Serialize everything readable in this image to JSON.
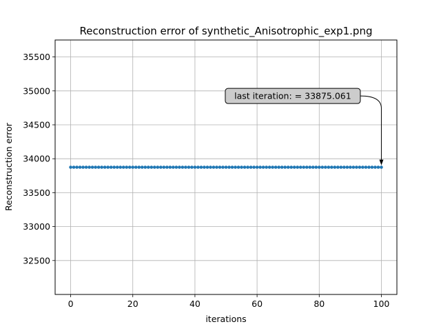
{
  "chart_data": {
    "type": "line",
    "title": "Reconstruction error of synthetic_Anisotrophic_exp1.png",
    "xlabel": "iterations",
    "ylabel": "Reconstruction error",
    "xlim": [
      -5,
      105
    ],
    "ylim": [
      32000,
      35750
    ],
    "x_ticks": [
      0,
      20,
      40,
      60,
      80,
      100
    ],
    "y_ticks": [
      32500,
      33000,
      33500,
      34000,
      34500,
      35000,
      35500
    ],
    "grid": true,
    "series": [
      {
        "x_start": 0,
        "x_end": 100,
        "value": 33875.061,
        "color": "#1f77b4",
        "marker": "dot"
      }
    ],
    "annotation": {
      "text": "last iteration: = 33875.061",
      "x": 100,
      "y": 33875.061,
      "text_x": 71.5,
      "text_y": 34925
    }
  }
}
